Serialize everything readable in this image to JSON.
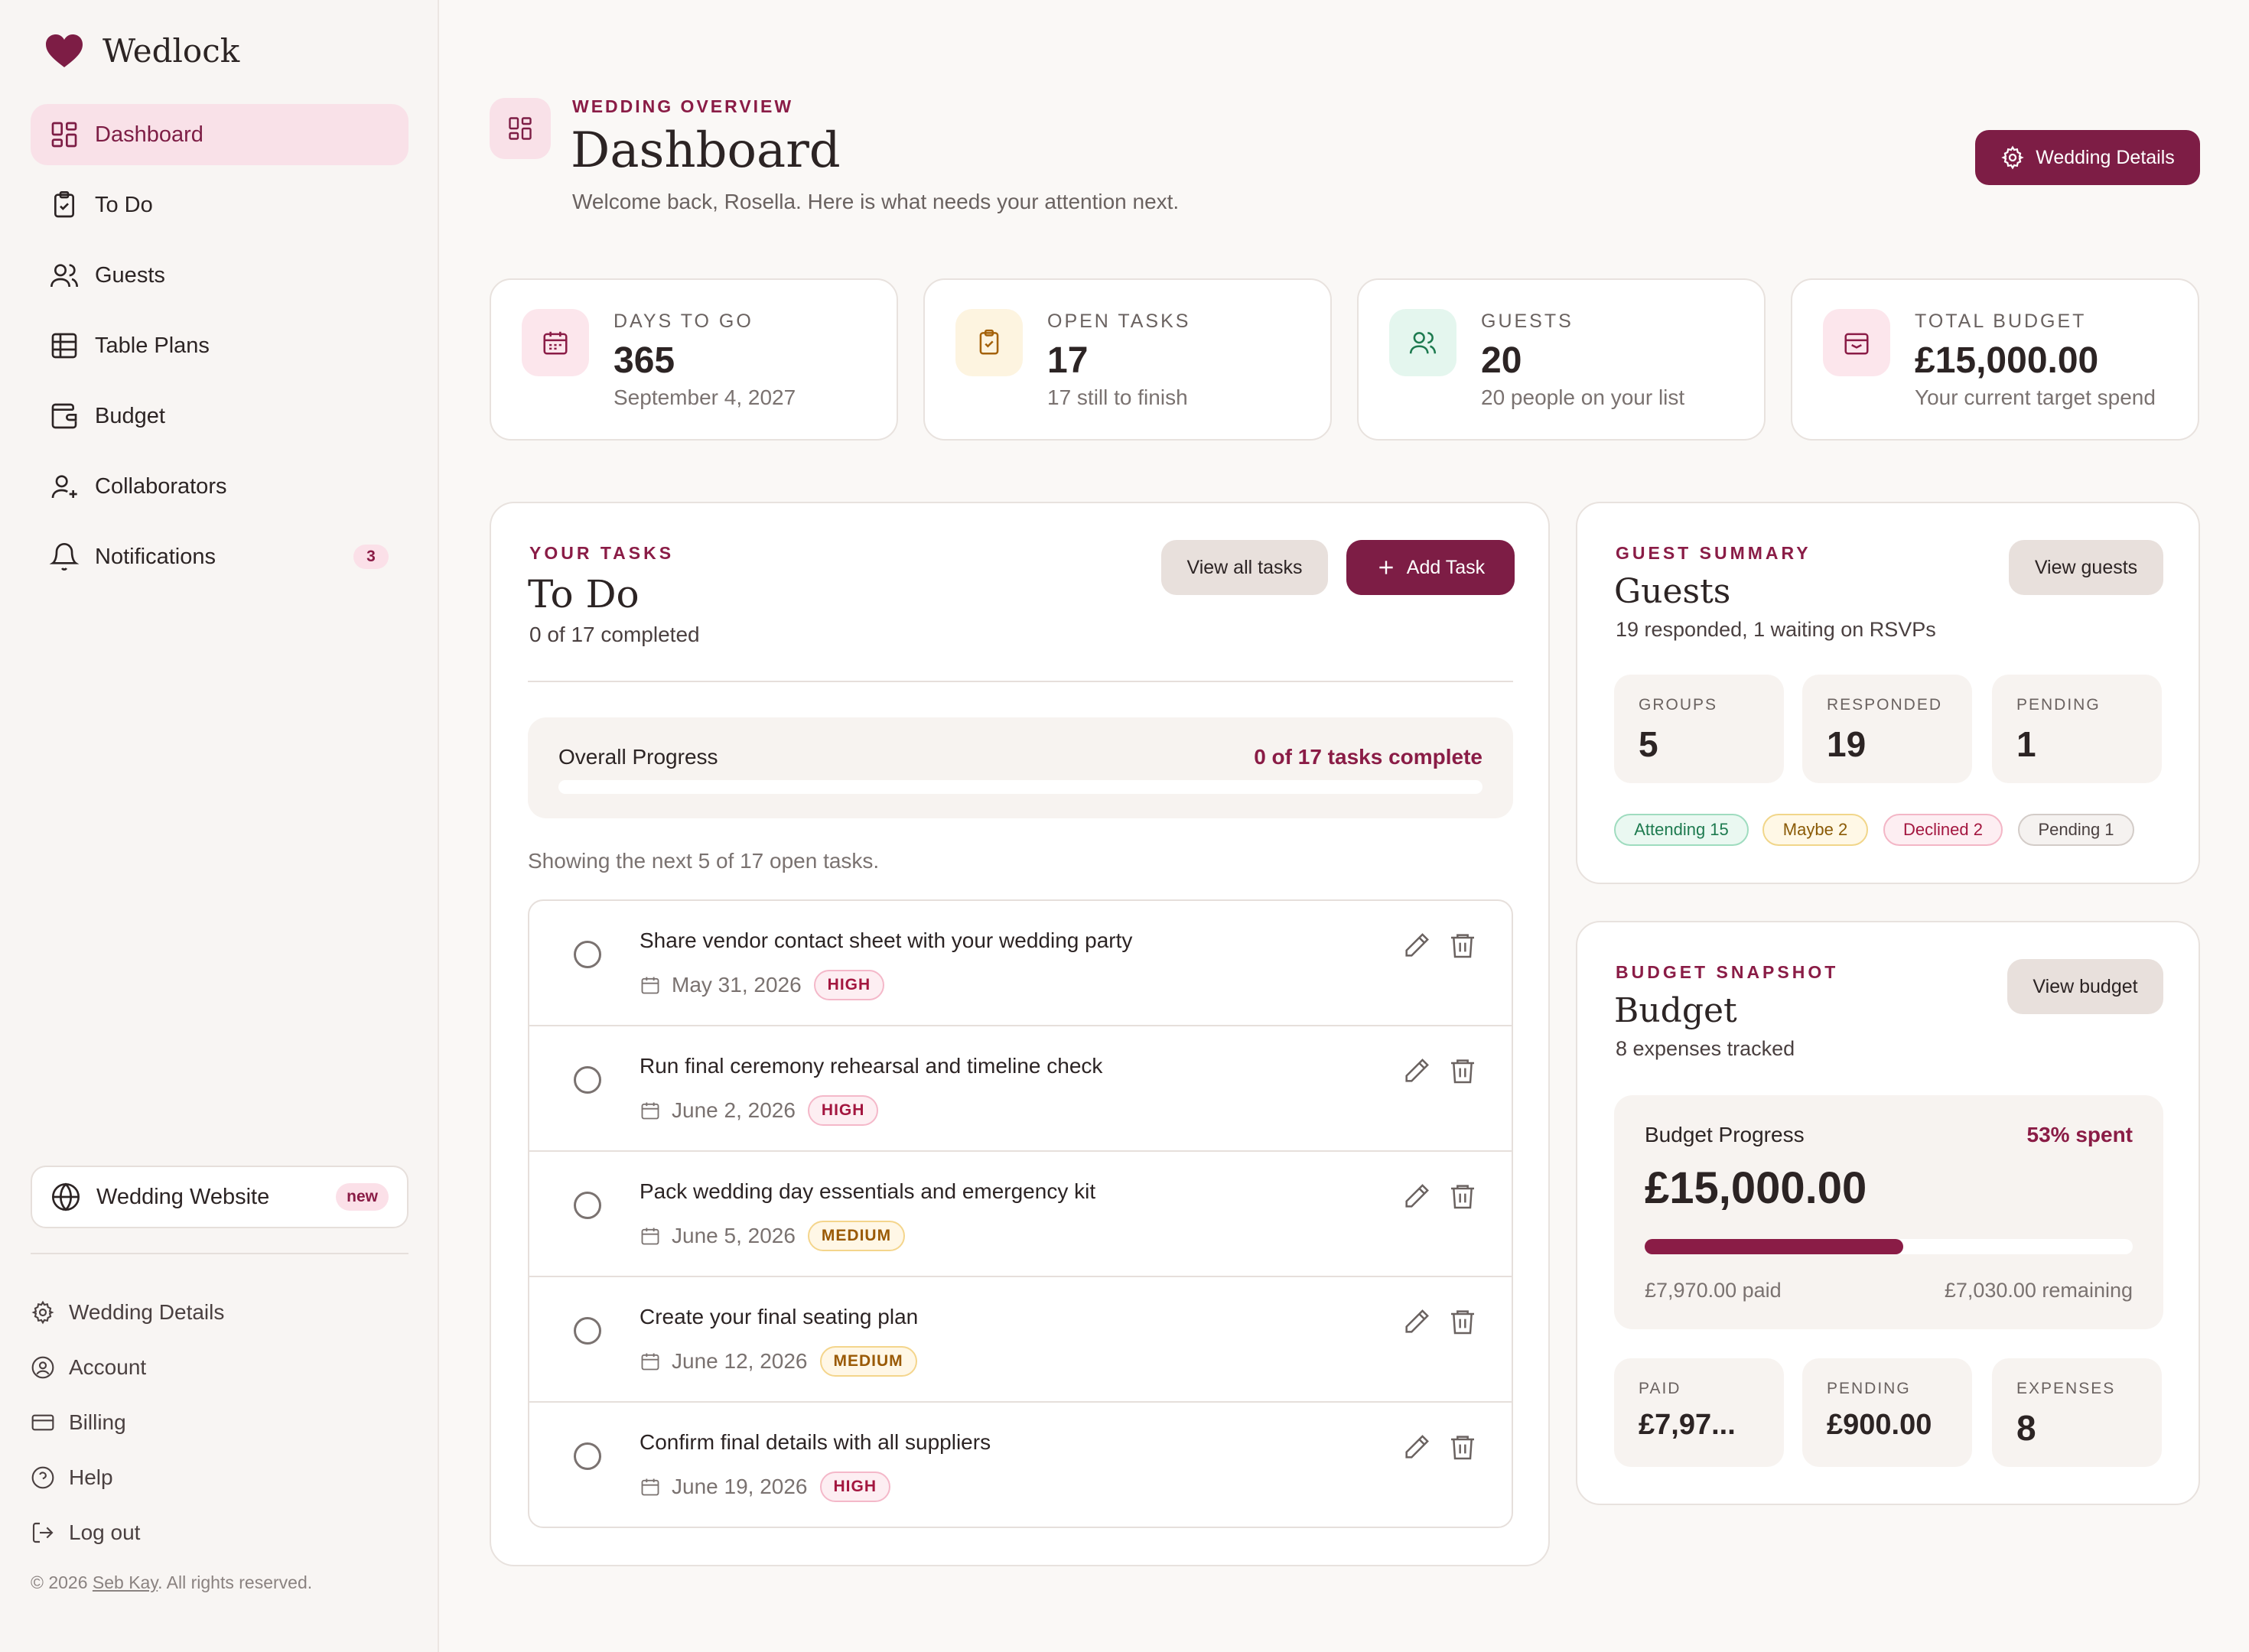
{
  "brand": {
    "name": "Wedlock"
  },
  "nav": [
    {
      "label": "Dashboard",
      "icon": "dashboard-icon",
      "active": true
    },
    {
      "label": "To Do",
      "icon": "clipboard-check-icon"
    },
    {
      "label": "Guests",
      "icon": "users-icon"
    },
    {
      "label": "Table Plans",
      "icon": "table-icon"
    },
    {
      "label": "Budget",
      "icon": "wallet-icon"
    },
    {
      "label": "Collaborators",
      "icon": "user-plus-icon"
    },
    {
      "label": "Notifications",
      "icon": "bell-icon",
      "badge": "3"
    }
  ],
  "website": {
    "label": "Wedding Website",
    "badge": "new"
  },
  "subnav": [
    {
      "label": "Wedding Details",
      "icon": "gear-icon"
    },
    {
      "label": "Account",
      "icon": "user-circle-icon"
    },
    {
      "label": "Billing",
      "icon": "credit-card-icon"
    },
    {
      "label": "Help",
      "icon": "help-circle-icon"
    },
    {
      "label": "Log out",
      "icon": "logout-icon"
    }
  ],
  "footer": {
    "prefix": "© 2026 ",
    "author": "Seb Kay",
    "suffix": ". All rights reserved."
  },
  "header": {
    "eyebrow": "WEDDING OVERVIEW",
    "title": "Dashboard",
    "subtitle": "Welcome back, Rosella. Here is what needs your attention next.",
    "details_button": "Wedding Details"
  },
  "stats": [
    {
      "label": "DAYS TO GO",
      "value": "365",
      "sub": "September 4, 2027",
      "icon": "calendar-icon"
    },
    {
      "label": "OPEN TASKS",
      "value": "17",
      "sub": "17 still to finish",
      "icon": "clipboard-check-icon"
    },
    {
      "label": "GUESTS",
      "value": "20",
      "sub": "20 people on your list",
      "icon": "users-icon"
    },
    {
      "label": "TOTAL BUDGET",
      "value": "£15,000.00",
      "sub": "Your current target spend",
      "icon": "wallet-icon"
    }
  ],
  "tasks": {
    "eyebrow": "YOUR TASKS",
    "title": "To Do",
    "subtitle": "0 of 17 completed",
    "view_all": "View all tasks",
    "add": "Add Task",
    "progress_label": "Overall Progress",
    "progress_status": "0 of 17 tasks complete",
    "progress_fraction": 0,
    "showing": "Showing the next 5 of 17 open tasks.",
    "items": [
      {
        "title": "Share vendor contact sheet with your wedding party",
        "date": "May 31, 2026",
        "priority": "HIGH",
        "level": "high"
      },
      {
        "title": "Run final ceremony rehearsal and timeline check",
        "date": "June 2, 2026",
        "priority": "HIGH",
        "level": "high"
      },
      {
        "title": "Pack wedding day essentials and emergency kit",
        "date": "June 5, 2026",
        "priority": "MEDIUM",
        "level": "medium"
      },
      {
        "title": "Create your final seating plan",
        "date": "June 12, 2026",
        "priority": "MEDIUM",
        "level": "medium"
      },
      {
        "title": "Confirm final details with all suppliers",
        "date": "June 19, 2026",
        "priority": "HIGH",
        "level": "high"
      }
    ]
  },
  "guests": {
    "eyebrow": "GUEST SUMMARY",
    "title": "Guests",
    "subtitle": "19 responded, 1 waiting on RSVPs",
    "view": "View guests",
    "stats": [
      {
        "label": "GROUPS",
        "value": "5"
      },
      {
        "label": "RESPONDED",
        "value": "19"
      },
      {
        "label": "PENDING",
        "value": "1"
      }
    ],
    "chips": [
      {
        "label": "Attending 15",
        "bg": "#eaf8f1",
        "border": "#9fdcbf",
        "color": "#1d7a4f"
      },
      {
        "label": "Maybe 2",
        "bg": "#fff8e6",
        "border": "#f1d68a",
        "color": "#8a5a06"
      },
      {
        "label": "Declined 2",
        "bg": "#fdeef2",
        "border": "#f3b6c6",
        "color": "#a3163f"
      },
      {
        "label": "Pending 1",
        "bg": "#f5f2f0",
        "border": "#d3ccc8",
        "color": "#4a4040"
      }
    ]
  },
  "budget": {
    "eyebrow": "BUDGET SNAPSHOT",
    "title": "Budget",
    "subtitle": "8 expenses tracked",
    "view": "View budget",
    "progress_label": "Budget Progress",
    "spent_text": "53% spent",
    "spent_fraction": 0.53,
    "total": "£15,000.00",
    "paid_text": "£7,970.00 paid",
    "remaining_text": "£7,030.00 remaining",
    "stats": [
      {
        "label": "PAID",
        "value": "£7,97..."
      },
      {
        "label": "PENDING",
        "value": "£900.00"
      },
      {
        "label": "EXPENSES",
        "value": "8"
      }
    ]
  },
  "colors": {
    "accent": "#7d1d45",
    "accent_light": "#f9e1e8",
    "background": "#faf8f6"
  }
}
